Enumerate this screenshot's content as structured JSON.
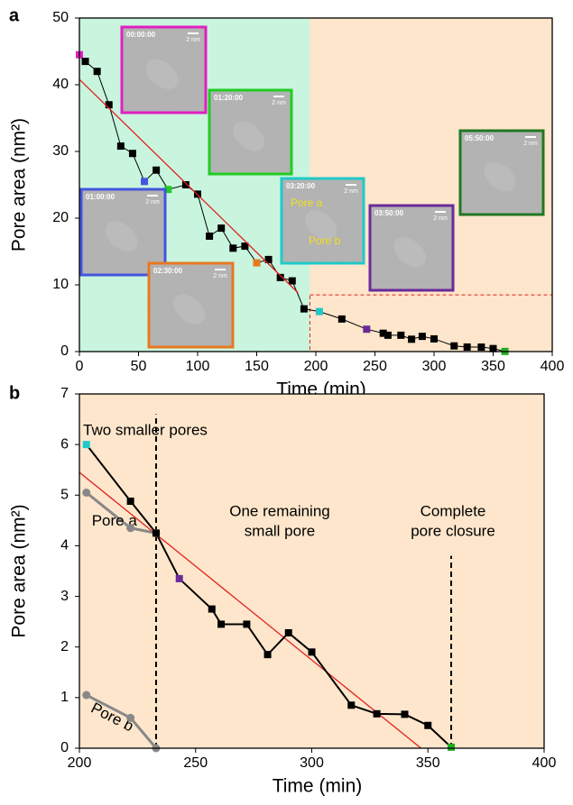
{
  "chart_data": [
    {
      "type": "line",
      "panel_label": "a",
      "x_label": "Time (min)",
      "y_label": "Pore area (nm²)",
      "xlim": [
        0,
        400
      ],
      "ylim": [
        0,
        50
      ],
      "xticks": [
        0,
        50,
        100,
        150,
        200,
        250,
        300,
        350,
        400
      ],
      "yticks": [
        0,
        10,
        20,
        30,
        40,
        50
      ],
      "regions": [
        {
          "xlim": [
            0,
            195
          ],
          "color": "#c9f5de"
        },
        {
          "xlim": [
            195,
            400
          ],
          "color": "#fde6cb"
        }
      ],
      "zoom_box": {
        "xlim": [
          195,
          400
        ],
        "ylim": [
          0,
          8.5
        ],
        "color": "#e02020"
      },
      "series": [
        {
          "x": [
            0,
            5,
            15,
            25,
            35,
            45,
            55,
            65,
            75,
            90,
            100,
            110,
            120,
            130,
            140,
            150,
            160,
            170,
            180,
            190,
            203,
            222,
            243,
            257,
            261,
            272,
            281,
            290,
            300,
            317,
            328,
            340,
            350,
            360
          ],
          "values": [
            44.5,
            43.5,
            42.0,
            37.0,
            30.8,
            29.7,
            25.5,
            27.2,
            24.3,
            25.0,
            23.6,
            17.3,
            18.5,
            15.5,
            15.8,
            13.3,
            13.8,
            11.1,
            10.6,
            6.4,
            6.0,
            4.88,
            3.35,
            2.75,
            2.45,
            2.45,
            1.85,
            2.28,
            1.9,
            0.85,
            0.68,
            0.67,
            0.45,
            0.02
          ],
          "color": "#000000",
          "marker": "square",
          "point_colors": [
            "#e020c0",
            "#000000",
            "#000000",
            "#000000",
            "#000000",
            "#000000",
            "#4455dd",
            "#000000",
            "#22cc22",
            "#000000",
            "#000000",
            "#000000",
            "#000000",
            "#000000",
            "#000000",
            "#e87820",
            "#000000",
            "#000000",
            "#000000",
            "#000000",
            "#22c8c8",
            "#000000",
            "#6a2a9a",
            "#000000",
            "#000000",
            "#000000",
            "#000000",
            "#000000",
            "#000000",
            "#000000",
            "#000000",
            "#000000",
            "#000000",
            "#22aa22"
          ]
        },
        {
          "x": [
            0,
            185
          ],
          "values": [
            40.8,
            8.8
          ],
          "color": "#e02020",
          "marker": "none"
        }
      ],
      "insets": [
        {
          "label": "00:00:00",
          "scale": "2 nm",
          "color": "#e020c0"
        },
        {
          "label": "01:20:00",
          "scale": "2 nm",
          "color": "#22cc22"
        },
        {
          "label": "01:00:00",
          "scale": "2 nm",
          "color": "#4455dd"
        },
        {
          "label": "02:30:00",
          "scale": "2 nm",
          "color": "#e87820"
        },
        {
          "label": "03:20:00",
          "scale": "2 nm",
          "color": "#22c8c8",
          "notes": [
            "Pore a",
            "Pore b"
          ]
        },
        {
          "label": "03:50:00",
          "scale": "2 nm",
          "color": "#6a2a9a"
        },
        {
          "label": "05:50:00",
          "scale": "2 nm",
          "color": "#227722"
        }
      ]
    },
    {
      "type": "line",
      "panel_label": "b",
      "x_label": "Time (min)",
      "y_label": "Pore area (nm²)",
      "xlim": [
        200,
        400
      ],
      "ylim": [
        0,
        7
      ],
      "xticks": [
        200,
        250,
        300,
        350,
        400
      ],
      "yticks": [
        0,
        1,
        2,
        3,
        4,
        5,
        6,
        7
      ],
      "regions": [
        {
          "xlim": [
            200,
            400
          ],
          "color": "#fde6cb"
        }
      ],
      "vlines": [
        {
          "x": 233,
          "ylim": [
            0,
            6.6
          ]
        },
        {
          "x": 360,
          "ylim": [
            0,
            3.8
          ]
        }
      ],
      "annotations": [
        {
          "lines": [
            "Two smaller pores"
          ]
        },
        {
          "lines": [
            "One remaining",
            "small pore"
          ]
        },
        {
          "lines": [
            "Complete",
            "pore closure"
          ]
        }
      ],
      "series": [
        {
          "x": [
            203,
            222,
            233
          ],
          "values": [
            5.05,
            4.35,
            4.25
          ],
          "color": "#888888",
          "marker": "circle",
          "label": "Pore a"
        },
        {
          "x": [
            203,
            222,
            233
          ],
          "values": [
            1.05,
            0.6,
            0.0
          ],
          "color": "#888888",
          "marker": "circle",
          "label": "Pore b"
        },
        {
          "x": [
            200,
            347
          ],
          "values": [
            5.45,
            0
          ],
          "color": "#e02020",
          "marker": "none"
        },
        {
          "x": [
            203,
            222,
            233,
            243,
            257,
            261,
            272,
            281,
            290,
            300,
            317,
            328,
            340,
            350,
            360
          ],
          "values": [
            6.0,
            4.88,
            4.25,
            3.35,
            2.75,
            2.45,
            2.45,
            1.85,
            2.28,
            1.9,
            0.85,
            0.68,
            0.67,
            0.45,
            0.02
          ],
          "color": "#000000",
          "marker": "square",
          "point_colors": [
            "#22c8c8",
            "#000000",
            "#000000",
            "#6a2a9a",
            "#000000",
            "#000000",
            "#000000",
            "#000000",
            "#000000",
            "#000000",
            "#000000",
            "#000000",
            "#000000",
            "#000000",
            "#22aa22"
          ]
        }
      ]
    }
  ]
}
